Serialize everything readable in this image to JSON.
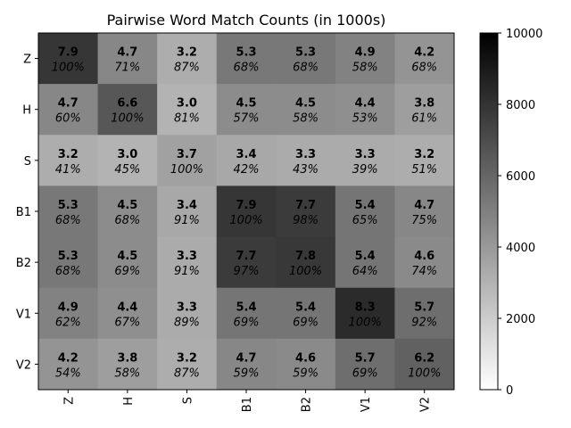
{
  "chart_data": {
    "type": "heatmap",
    "title": "Pairwise Word Match Counts (in 1000s)",
    "xlabel": "",
    "ylabel": "",
    "x_categories": [
      "Z",
      "H",
      "S",
      "B1",
      "B2",
      "V1",
      "V2"
    ],
    "y_categories": [
      "Z",
      "H",
      "S",
      "B1",
      "B2",
      "V1",
      "V2"
    ],
    "values_thousands": [
      [
        7.9,
        4.7,
        3.2,
        5.3,
        5.3,
        4.9,
        4.2
      ],
      [
        4.7,
        6.6,
        3.0,
        4.5,
        4.5,
        4.4,
        3.8
      ],
      [
        3.2,
        3.0,
        3.7,
        3.4,
        3.3,
        3.3,
        3.2
      ],
      [
        5.3,
        4.5,
        3.4,
        7.9,
        7.7,
        5.4,
        4.7
      ],
      [
        5.3,
        4.5,
        3.3,
        7.7,
        7.8,
        5.4,
        4.6
      ],
      [
        4.9,
        4.4,
        3.3,
        5.4,
        5.4,
        8.3,
        5.7
      ],
      [
        4.2,
        3.8,
        3.2,
        4.7,
        4.6,
        5.7,
        6.2
      ]
    ],
    "value_labels": [
      [
        "7.9",
        "4.7",
        "3.2",
        "5.3",
        "5.3",
        "4.9",
        "4.2"
      ],
      [
        "4.7",
        "6.6",
        "3.0",
        "4.5",
        "4.5",
        "4.4",
        "3.8"
      ],
      [
        "3.2",
        "3.0",
        "3.7",
        "3.4",
        "3.3",
        "3.3",
        "3.2"
      ],
      [
        "5.3",
        "4.5",
        "3.4",
        "7.9",
        "7.7",
        "5.4",
        "4.7"
      ],
      [
        "5.3",
        "4.5",
        "3.3",
        "7.7",
        "7.8",
        "5.4",
        "4.6"
      ],
      [
        "4.9",
        "4.4",
        "3.3",
        "5.4",
        "5.4",
        "8.3",
        "5.7"
      ],
      [
        "4.2",
        "3.8",
        "3.2",
        "4.7",
        "4.6",
        "5.7",
        "6.2"
      ]
    ],
    "percent_labels": [
      [
        "100%",
        "71%",
        "87%",
        "68%",
        "68%",
        "58%",
        "68%"
      ],
      [
        "60%",
        "100%",
        "81%",
        "57%",
        "58%",
        "53%",
        "61%"
      ],
      [
        "41%",
        "45%",
        "100%",
        "42%",
        "43%",
        "39%",
        "51%"
      ],
      [
        "68%",
        "68%",
        "91%",
        "100%",
        "98%",
        "65%",
        "75%"
      ],
      [
        "68%",
        "69%",
        "91%",
        "97%",
        "100%",
        "64%",
        "74%"
      ],
      [
        "62%",
        "67%",
        "89%",
        "69%",
        "69%",
        "100%",
        "92%"
      ],
      [
        "54%",
        "58%",
        "87%",
        "59%",
        "59%",
        "69%",
        "100%"
      ]
    ],
    "colorbar": {
      "min": 0,
      "max": 10000,
      "ticks": [
        "0",
        "2000",
        "4000",
        "6000",
        "8000",
        "10000"
      ],
      "colormap": "greys",
      "low_color": "#ffffff",
      "high_color": "#000000"
    },
    "grid": false
  }
}
